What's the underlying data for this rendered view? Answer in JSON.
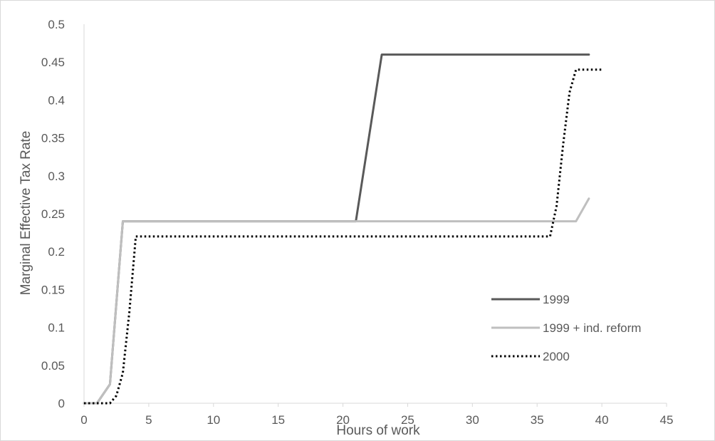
{
  "chart_data": {
    "type": "line",
    "title": "",
    "xlabel": "Hours of work",
    "ylabel": "Marginal Effective Tax Rate",
    "xlim": [
      0,
      45
    ],
    "ylim": [
      0,
      0.5
    ],
    "x_ticks": [
      0,
      5,
      10,
      15,
      20,
      25,
      30,
      35,
      40,
      45
    ],
    "y_ticks": [
      0,
      0.05,
      0.1,
      0.15,
      0.2,
      0.25,
      0.3,
      0.35,
      0.4,
      0.45,
      0.5
    ],
    "grid": false,
    "legend_position": "bottom-right",
    "series": [
      {
        "name": "1999",
        "color": "#595959",
        "dash": "solid",
        "x": [
          0,
          1,
          2,
          3,
          21,
          23,
          39
        ],
        "y": [
          0,
          0,
          0.025,
          0.24,
          0.24,
          0.46,
          0.46
        ]
      },
      {
        "name": "1999 + ind. reform",
        "color": "#bfbfbf",
        "dash": "solid",
        "x": [
          0,
          1,
          2,
          3,
          38,
          39
        ],
        "y": [
          0,
          0,
          0.025,
          0.24,
          0.24,
          0.27
        ]
      },
      {
        "name": "2000",
        "color": "#000000",
        "dash": "dotted",
        "x": [
          0,
          1,
          2,
          2.5,
          3,
          3.5,
          4,
          36,
          36.5,
          37,
          37.5,
          38,
          40
        ],
        "y": [
          0,
          0,
          0,
          0.01,
          0.04,
          0.12,
          0.22,
          0.22,
          0.26,
          0.34,
          0.41,
          0.44,
          0.44
        ]
      }
    ]
  }
}
